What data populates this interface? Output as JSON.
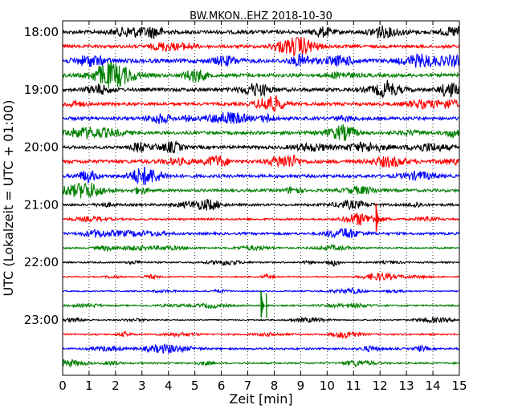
{
  "chart_data": {
    "type": "line",
    "title": "BW.MKON..EHZ 2018-10-30",
    "xlabel": "Zeit  [min]",
    "ylabel": "UTC (Lokalzeit = UTC + 01:00)",
    "xlim": [
      0,
      15
    ],
    "x_ticks": [
      "0",
      "1",
      "2",
      "3",
      "4",
      "5",
      "6",
      "7",
      "8",
      "9",
      "10",
      "11",
      "12",
      "13",
      "14",
      "15"
    ],
    "y_ticks": [
      "18:00",
      "19:00",
      "20:00",
      "21:00",
      "22:00",
      "23:00"
    ],
    "grid": "vertical-dotted",
    "colors": [
      "#000000",
      "#ff0000",
      "#0000ff",
      "#008000"
    ],
    "traces": [
      {
        "start": "18:00",
        "color": "#000000",
        "noise": 0.9
      },
      {
        "start": "18:15",
        "color": "#ff0000",
        "noise": 0.8
      },
      {
        "start": "18:30",
        "color": "#0000ff",
        "noise": 1.0
      },
      {
        "start": "18:45",
        "color": "#008000",
        "noise": 0.9
      },
      {
        "start": "19:00",
        "color": "#000000",
        "noise": 0.9
      },
      {
        "start": "19:15",
        "color": "#ff0000",
        "noise": 0.8
      },
      {
        "start": "19:30",
        "color": "#0000ff",
        "noise": 0.8
      },
      {
        "start": "19:45",
        "color": "#008000",
        "noise": 0.8
      },
      {
        "start": "20:00",
        "color": "#000000",
        "noise": 0.8
      },
      {
        "start": "20:15",
        "color": "#ff0000",
        "noise": 0.9
      },
      {
        "start": "20:30",
        "color": "#0000ff",
        "noise": 0.8
      },
      {
        "start": "20:45",
        "color": "#008000",
        "noise": 0.7
      },
      {
        "start": "21:00",
        "color": "#000000",
        "noise": 0.6
      },
      {
        "start": "21:15",
        "color": "#ff0000",
        "noise": 0.5,
        "event_min": 11.85,
        "event_amp": 2.2
      },
      {
        "start": "21:30",
        "color": "#0000ff",
        "noise": 0.6
      },
      {
        "start": "21:45",
        "color": "#008000",
        "noise": 0.4
      },
      {
        "start": "22:00",
        "color": "#000000",
        "noise": 0.4
      },
      {
        "start": "22:15",
        "color": "#ff0000",
        "noise": 0.3
      },
      {
        "start": "22:30",
        "color": "#0000ff",
        "noise": 0.3
      },
      {
        "start": "22:45",
        "color": "#008000",
        "noise": 0.4,
        "event_min": 7.5,
        "event_amp": 2.1
      },
      {
        "start": "23:00",
        "color": "#000000",
        "noise": 0.3
      },
      {
        "start": "23:15",
        "color": "#ff0000",
        "noise": 0.4
      },
      {
        "start": "23:30",
        "color": "#0000ff",
        "noise": 0.5
      },
      {
        "start": "23:45",
        "color": "#008000",
        "noise": 0.4
      }
    ]
  }
}
